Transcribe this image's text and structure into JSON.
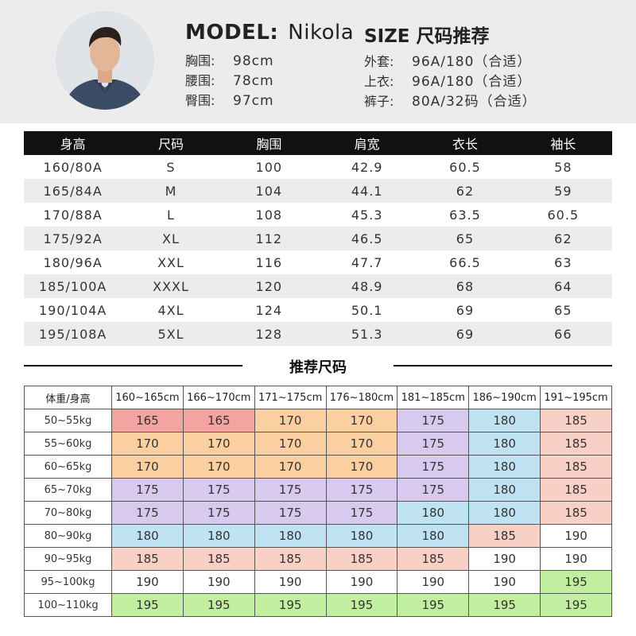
{
  "model": {
    "label": "MODEL:",
    "name": "Nikola",
    "measurements": [
      {
        "label": "胸围:",
        "value": "98cm"
      },
      {
        "label": "腰围:",
        "value": "78cm"
      },
      {
        "label": "臀围:",
        "value": "97cm"
      }
    ]
  },
  "size_recommendation": {
    "title": "SIZE 尺码推荐",
    "items": [
      {
        "label": "外套:",
        "value": "96A/180（合适）"
      },
      {
        "label": "上衣:",
        "value": "96A/180（合适）"
      },
      {
        "label": "裤子:",
        "value": "80A/32码（合适）"
      }
    ]
  },
  "size_table": {
    "headers": [
      "身高",
      "尺码",
      "胸围",
      "肩宽",
      "衣长",
      "袖长"
    ],
    "rows": [
      [
        "160/80A",
        "S",
        "100",
        "42.9",
        "60.5",
        "58"
      ],
      [
        "165/84A",
        "M",
        "104",
        "44.1",
        "62",
        "59"
      ],
      [
        "170/88A",
        "L",
        "108",
        "45.3",
        "63.5",
        "60.5"
      ],
      [
        "175/92A",
        "XL",
        "112",
        "46.5",
        "65",
        "62"
      ],
      [
        "180/96A",
        "XXL",
        "116",
        "47.7",
        "66.5",
        "63"
      ],
      [
        "185/100A",
        "XXXL",
        "120",
        "48.9",
        "68",
        "64"
      ],
      [
        "190/104A",
        "4XL",
        "124",
        "50.1",
        "69",
        "65"
      ],
      [
        "195/108A",
        "5XL",
        "128",
        "51.3",
        "69",
        "66"
      ]
    ]
  },
  "recommend_table": {
    "title": "推荐尺码",
    "corner": "体重/身高",
    "columns": [
      "160~165cm",
      "166~170cm",
      "171~175cm",
      "176~180cm",
      "181~185cm",
      "186~190cm",
      "191~195cm"
    ],
    "rows": [
      {
        "label": "50~55kg",
        "values": [
          "165",
          "165",
          "170",
          "170",
          "175",
          "180",
          "185"
        ]
      },
      {
        "label": "55~60kg",
        "values": [
          "170",
          "170",
          "170",
          "170",
          "175",
          "180",
          "185"
        ]
      },
      {
        "label": "60~65kg",
        "values": [
          "170",
          "170",
          "170",
          "170",
          "175",
          "180",
          "185"
        ]
      },
      {
        "label": "65~70kg",
        "values": [
          "175",
          "175",
          "175",
          "175",
          "175",
          "180",
          "185"
        ]
      },
      {
        "label": "70~80kg",
        "values": [
          "175",
          "175",
          "175",
          "175",
          "180",
          "180",
          "185"
        ]
      },
      {
        "label": "80~90kg",
        "values": [
          "180",
          "180",
          "180",
          "180",
          "180",
          "185",
          "190"
        ]
      },
      {
        "label": "90~95kg",
        "values": [
          "185",
          "185",
          "185",
          "185",
          "185",
          "190",
          "190"
        ]
      },
      {
        "label": "95~100kg",
        "values": [
          "190",
          "190",
          "190",
          "190",
          "190",
          "190",
          "195"
        ]
      },
      {
        "label": "100~110kg",
        "values": [
          "195",
          "195",
          "195",
          "195",
          "195",
          "195",
          "195"
        ]
      }
    ],
    "size_colors": {
      "165": "#f4a3a0",
      "170": "#fbcf9f",
      "175": "#d8c9ef",
      "180": "#bfe3f3",
      "185": "#f9d0c6",
      "190": "#ffffff",
      "195": "#c2ee9f"
    }
  }
}
